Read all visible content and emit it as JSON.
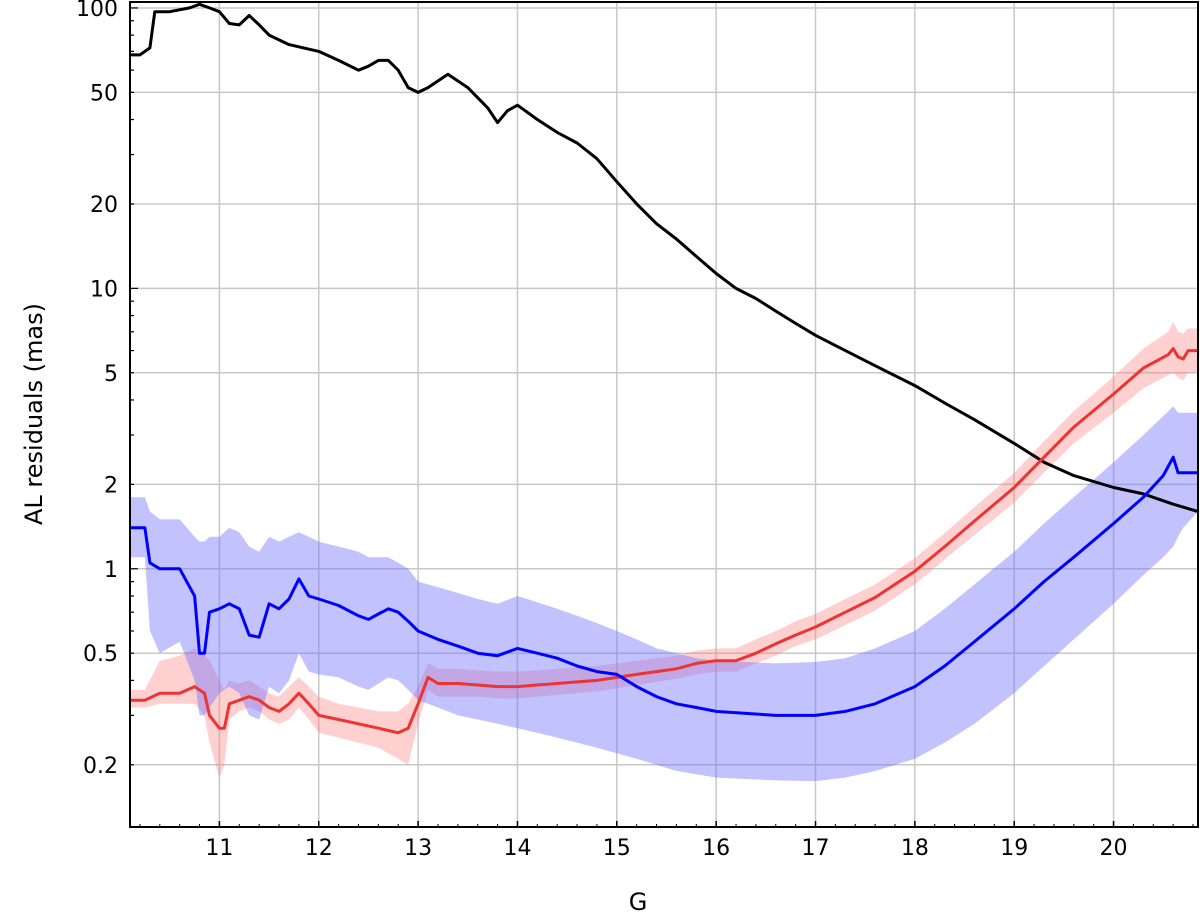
{
  "chart_data": {
    "type": "line",
    "title": "",
    "xlabel": "G",
    "ylabel": "AL residuals (mas)",
    "xlim": [
      10.1,
      20.85
    ],
    "ylim": [
      0.12,
      105
    ],
    "yscale": "log",
    "grid": true,
    "x_ticks": [
      11,
      12,
      13,
      14,
      15,
      16,
      17,
      18,
      19,
      20
    ],
    "x_tick_labels": [
      "11",
      "12",
      "13",
      "14",
      "15",
      "16",
      "17",
      "18",
      "19",
      "20"
    ],
    "y_ticks": [
      0.2,
      0.5,
      1,
      2,
      5,
      10,
      20,
      50,
      100
    ],
    "y_tick_labels": [
      "0.2",
      "0.5",
      "1",
      "2",
      "5",
      "10",
      "20",
      "50",
      "100"
    ],
    "series": [
      {
        "color": "#000000",
        "style": "line",
        "x": [
          10.1,
          10.2,
          10.25,
          10.3,
          10.35,
          10.5,
          10.7,
          10.8,
          10.9,
          11.0,
          11.1,
          11.2,
          11.3,
          11.4,
          11.5,
          11.7,
          12.0,
          12.2,
          12.4,
          12.5,
          12.6,
          12.7,
          12.8,
          12.9,
          13.0,
          13.1,
          13.3,
          13.5,
          13.7,
          13.8,
          13.9,
          14.0,
          14.2,
          14.4,
          14.6,
          14.8,
          15.0,
          15.2,
          15.4,
          15.6,
          15.8,
          16.0,
          16.2,
          16.4,
          16.6,
          16.8,
          17.0,
          17.3,
          17.6,
          18.0,
          18.3,
          18.6,
          19.0,
          19.3,
          19.6,
          20.0,
          20.3,
          20.6,
          20.85
        ],
        "y": [
          68,
          68,
          70,
          72,
          97,
          97,
          100,
          103,
          100,
          97,
          88,
          87,
          94,
          87,
          80,
          74,
          70,
          65,
          60,
          62,
          65,
          65,
          60,
          52,
          50,
          52,
          58,
          52,
          44,
          39,
          43,
          45,
          40,
          36,
          33,
          29,
          24,
          20,
          17,
          15,
          13,
          11.3,
          10,
          9.2,
          8.3,
          7.5,
          6.8,
          6.0,
          5.3,
          4.5,
          3.9,
          3.4,
          2.8,
          2.4,
          2.15,
          1.95,
          1.85,
          1.7,
          1.6
        ]
      },
      {
        "color": "#ff0000",
        "style": "line_with_band",
        "x": [
          10.1,
          10.25,
          10.4,
          10.6,
          10.75,
          10.85,
          10.9,
          11.0,
          11.05,
          11.1,
          11.2,
          11.3,
          11.4,
          11.5,
          11.6,
          11.7,
          11.8,
          11.9,
          12.0,
          12.2,
          12.4,
          12.6,
          12.8,
          12.9,
          13.0,
          13.1,
          13.2,
          13.4,
          13.6,
          13.8,
          14.0,
          14.2,
          14.4,
          14.6,
          14.8,
          15.0,
          15.2,
          15.4,
          15.6,
          15.8,
          16.0,
          16.2,
          16.4,
          16.6,
          16.8,
          17.0,
          17.3,
          17.6,
          18.0,
          18.3,
          18.6,
          19.0,
          19.3,
          19.6,
          20.0,
          20.3,
          20.55,
          20.6,
          20.65,
          20.7,
          20.75,
          20.85
        ],
        "y": [
          0.34,
          0.34,
          0.36,
          0.36,
          0.38,
          0.36,
          0.3,
          0.27,
          0.27,
          0.33,
          0.34,
          0.35,
          0.34,
          0.32,
          0.31,
          0.33,
          0.36,
          0.33,
          0.3,
          0.29,
          0.28,
          0.27,
          0.26,
          0.27,
          0.33,
          0.41,
          0.39,
          0.39,
          0.385,
          0.38,
          0.38,
          0.385,
          0.39,
          0.395,
          0.4,
          0.41,
          0.42,
          0.43,
          0.44,
          0.46,
          0.47,
          0.47,
          0.5,
          0.54,
          0.58,
          0.62,
          0.7,
          0.79,
          0.98,
          1.2,
          1.48,
          1.95,
          2.5,
          3.2,
          4.2,
          5.2,
          5.8,
          6.1,
          5.7,
          5.6,
          6.0,
          6.0
        ],
        "band_low": [
          0.32,
          0.32,
          0.33,
          0.33,
          0.33,
          0.3,
          0.24,
          0.18,
          0.2,
          0.29,
          0.31,
          0.32,
          0.31,
          0.29,
          0.28,
          0.29,
          0.32,
          0.29,
          0.26,
          0.25,
          0.24,
          0.23,
          0.21,
          0.2,
          0.28,
          0.37,
          0.35,
          0.35,
          0.35,
          0.345,
          0.345,
          0.35,
          0.355,
          0.36,
          0.365,
          0.375,
          0.385,
          0.395,
          0.405,
          0.42,
          0.43,
          0.43,
          0.46,
          0.49,
          0.53,
          0.56,
          0.63,
          0.71,
          0.88,
          1.08,
          1.32,
          1.72,
          2.2,
          2.8,
          3.6,
          4.4,
          4.9,
          5.0,
          4.8,
          4.7,
          5.0,
          5.0
        ],
        "band_high": [
          0.37,
          0.37,
          0.47,
          0.49,
          0.52,
          0.49,
          0.47,
          0.4,
          0.37,
          0.4,
          0.39,
          0.4,
          0.38,
          0.36,
          0.35,
          0.38,
          0.41,
          0.38,
          0.35,
          0.33,
          0.32,
          0.31,
          0.31,
          0.33,
          0.38,
          0.46,
          0.44,
          0.44,
          0.435,
          0.43,
          0.43,
          0.435,
          0.44,
          0.445,
          0.45,
          0.46,
          0.47,
          0.48,
          0.49,
          0.51,
          0.52,
          0.52,
          0.56,
          0.6,
          0.65,
          0.69,
          0.78,
          0.88,
          1.09,
          1.34,
          1.66,
          2.2,
          2.85,
          3.65,
          4.85,
          6.1,
          7.0,
          7.6,
          7.0,
          6.9,
          7.2,
          7.2
        ]
      },
      {
        "color": "#0000ff",
        "style": "line_with_band",
        "x": [
          10.1,
          10.25,
          10.3,
          10.4,
          10.6,
          10.75,
          10.8,
          10.85,
          10.9,
          11.0,
          11.1,
          11.2,
          11.3,
          11.4,
          11.5,
          11.6,
          11.7,
          11.8,
          11.9,
          12.0,
          12.2,
          12.4,
          12.5,
          12.6,
          12.7,
          12.8,
          12.9,
          13.0,
          13.2,
          13.4,
          13.6,
          13.8,
          14.0,
          14.2,
          14.4,
          14.6,
          14.8,
          15.0,
          15.2,
          15.4,
          15.6,
          15.8,
          16.0,
          16.3,
          16.6,
          17.0,
          17.3,
          17.6,
          18.0,
          18.3,
          18.6,
          19.0,
          19.3,
          19.6,
          20.0,
          20.3,
          20.5,
          20.6,
          20.65,
          20.7,
          20.85
        ],
        "y": [
          1.4,
          1.4,
          1.05,
          1.0,
          1.0,
          0.8,
          0.5,
          0.5,
          0.7,
          0.72,
          0.75,
          0.72,
          0.58,
          0.57,
          0.75,
          0.72,
          0.78,
          0.92,
          0.8,
          0.78,
          0.74,
          0.68,
          0.66,
          0.69,
          0.72,
          0.7,
          0.65,
          0.6,
          0.56,
          0.53,
          0.5,
          0.49,
          0.52,
          0.5,
          0.48,
          0.45,
          0.43,
          0.42,
          0.38,
          0.35,
          0.33,
          0.32,
          0.31,
          0.305,
          0.3,
          0.3,
          0.31,
          0.33,
          0.38,
          0.45,
          0.55,
          0.72,
          0.9,
          1.1,
          1.45,
          1.8,
          2.15,
          2.5,
          2.2,
          2.2,
          2.2
        ],
        "band_low": [
          1.1,
          1.1,
          0.6,
          0.5,
          0.55,
          0.4,
          0.3,
          0.3,
          0.32,
          0.36,
          0.38,
          0.36,
          0.3,
          0.29,
          0.38,
          0.36,
          0.4,
          0.5,
          0.43,
          0.42,
          0.41,
          0.38,
          0.37,
          0.39,
          0.41,
          0.4,
          0.37,
          0.34,
          0.32,
          0.3,
          0.29,
          0.28,
          0.27,
          0.26,
          0.25,
          0.24,
          0.23,
          0.22,
          0.21,
          0.2,
          0.19,
          0.185,
          0.18,
          0.178,
          0.176,
          0.175,
          0.18,
          0.19,
          0.21,
          0.24,
          0.28,
          0.36,
          0.45,
          0.56,
          0.75,
          0.95,
          1.1,
          1.2,
          1.3,
          1.4,
          1.6
        ],
        "band_high": [
          1.8,
          1.8,
          1.6,
          1.5,
          1.5,
          1.3,
          1.25,
          1.25,
          1.3,
          1.3,
          1.4,
          1.35,
          1.2,
          1.15,
          1.3,
          1.25,
          1.3,
          1.35,
          1.3,
          1.25,
          1.2,
          1.15,
          1.1,
          1.1,
          1.1,
          1.05,
          1.0,
          0.9,
          0.86,
          0.82,
          0.78,
          0.75,
          0.8,
          0.76,
          0.72,
          0.68,
          0.64,
          0.6,
          0.56,
          0.52,
          0.5,
          0.48,
          0.47,
          0.465,
          0.46,
          0.465,
          0.48,
          0.52,
          0.6,
          0.72,
          0.88,
          1.15,
          1.45,
          1.8,
          2.4,
          3.0,
          3.5,
          3.8,
          3.6,
          3.6,
          3.6
        ]
      }
    ]
  }
}
